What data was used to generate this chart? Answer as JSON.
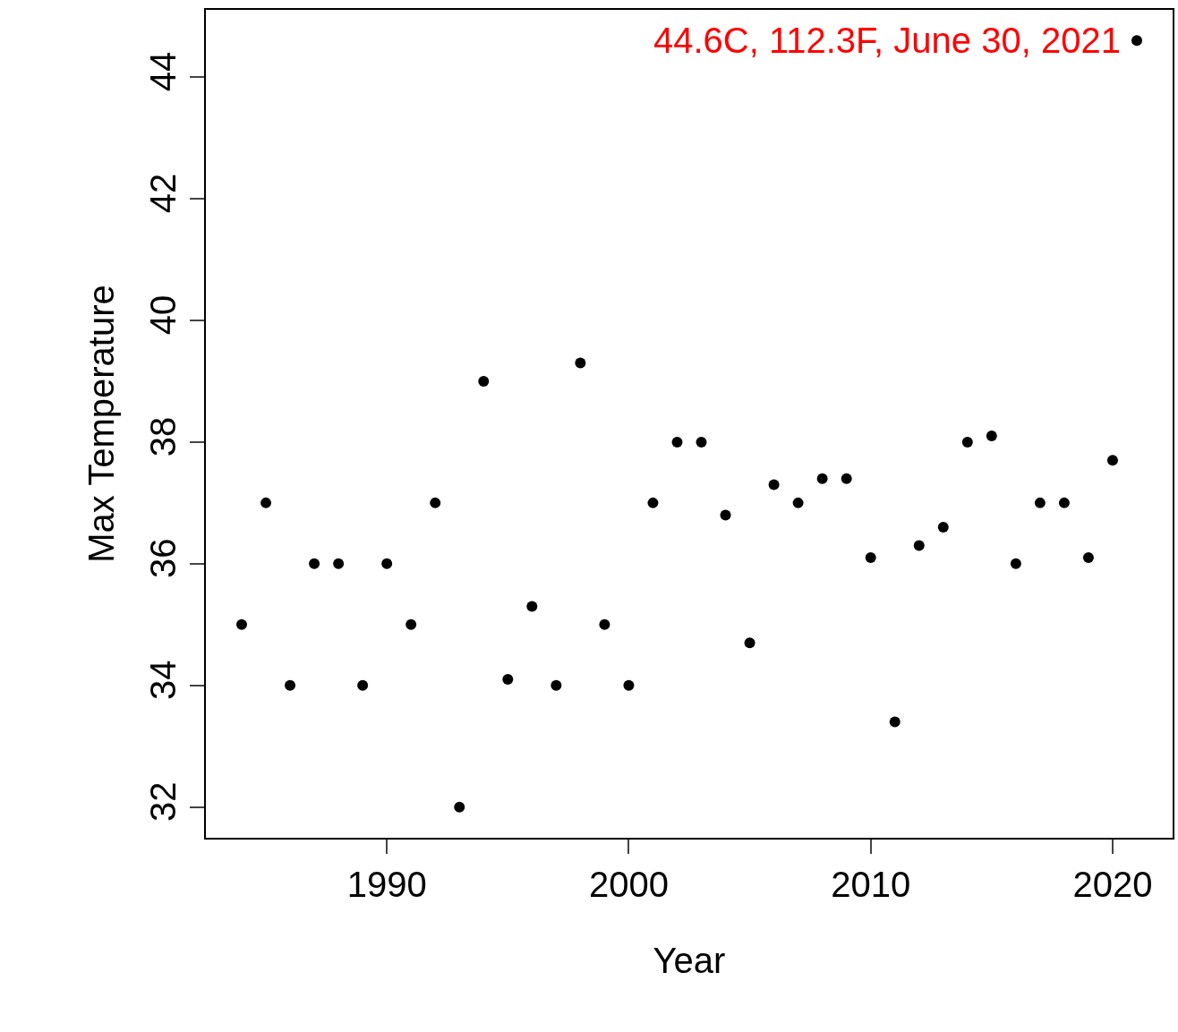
{
  "chart_data": {
    "type": "scatter",
    "xlabel": "Year",
    "ylabel": "Max Temperature",
    "x": [
      1984,
      1985,
      1986,
      1987,
      1988,
      1989,
      1990,
      1991,
      1992,
      1993,
      1994,
      1995,
      1996,
      1997,
      1998,
      1999,
      2000,
      2001,
      2002,
      2003,
      2004,
      2005,
      2006,
      2007,
      2008,
      2009,
      2010,
      2011,
      2012,
      2013,
      2014,
      2015,
      2016,
      2017,
      2018,
      2019,
      2020,
      2021
    ],
    "series": [
      {
        "color": "#000000",
        "values": [
          35.0,
          37.0,
          34.0,
          36.0,
          36.0,
          34.0,
          36.0,
          35.0,
          37.0,
          32.0,
          39.0,
          34.1,
          35.3,
          34.0,
          39.3,
          35.0,
          34.0,
          37.0,
          38.0,
          38.0,
          36.8,
          34.7,
          37.3,
          37.0,
          37.4,
          37.4,
          36.1,
          33.4,
          36.3,
          36.6,
          38.0,
          38.1,
          36.0,
          37.0,
          37.0,
          36.1,
          37.7,
          44.6
        ]
      }
    ],
    "xlim": [
      1982.52,
      2022.48
    ],
    "xticks": [
      1990,
      2000,
      2010,
      2020
    ],
    "ylim": [
      31.496,
      45.104
    ],
    "yticks": [
      32,
      34,
      36,
      38,
      40,
      42,
      44
    ],
    "annotations": [
      {
        "text": "44.6C, 112.3F, June 30, 2021",
        "x": 2021,
        "y": 44.6
      }
    ],
    "marker": "circle"
  }
}
